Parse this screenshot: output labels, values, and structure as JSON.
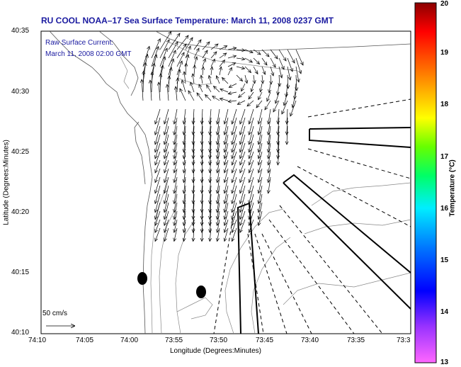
{
  "title": "RU COOL  NOAA–17  Sea Surface Temperature:  March 11, 2008 0237 GMT",
  "annotation": {
    "line1": "Raw Surface Current:",
    "line2": "March 11, 2008 02:00 GMT"
  },
  "x_axis": {
    "label": "Longitude (Degrees:Minutes)",
    "ticks": [
      "74:10",
      "74:05",
      "74:00",
      "73:55",
      "73:50",
      "73:45",
      "73:40",
      "73:35",
      "73:3"
    ]
  },
  "y_axis": {
    "label": "Latitude (Degrees:Minutes)",
    "ticks": [
      "40:35",
      "40:30",
      "40:25",
      "40:20",
      "40:15",
      "40:10"
    ]
  },
  "colorbar": {
    "label": "Temperature (°C)",
    "ticks": [
      "20",
      "19",
      "18",
      "17",
      "16",
      "15",
      "14",
      "13"
    ],
    "colors": [
      "#ff00ff",
      "#8800ff",
      "#0000ff",
      "#0088ff",
      "#00ffff",
      "#00ff66",
      "#88ff00",
      "#ffff00",
      "#ffaa00",
      "#ff4400",
      "#ff0000",
      "#8b0000"
    ]
  },
  "scale_bar": {
    "label": "50 cm/s"
  },
  "colors": {
    "title": "#1a1aa0",
    "land_outline": "#888888",
    "coast": "#555555"
  }
}
